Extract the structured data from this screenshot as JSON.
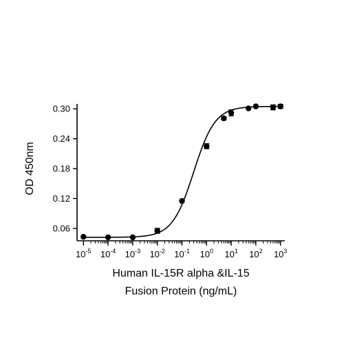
{
  "chart_data": {
    "type": "scatter",
    "xlabel_line1": "Human IL-15R alpha &IL-15",
    "xlabel_line2": "Fusion Protein (ng/mL)",
    "ylabel": "OD 450nm",
    "x_scale": "log10",
    "xlim": [
      5.5e-06,
      1500
    ],
    "ylim": [
      0.035,
      0.31
    ],
    "x_ticks": [
      {
        "value": 1e-05,
        "base": "10",
        "exp": "-5"
      },
      {
        "value": 0.0001,
        "base": "10",
        "exp": "-4"
      },
      {
        "value": 0.001,
        "base": "10",
        "exp": "-3"
      },
      {
        "value": 0.01,
        "base": "10",
        "exp": "-2"
      },
      {
        "value": 0.1,
        "base": "10",
        "exp": "-1"
      },
      {
        "value": 1,
        "base": "10",
        "exp": "0"
      },
      {
        "value": 10,
        "base": "10",
        "exp": "1"
      },
      {
        "value": 100,
        "base": "10",
        "exp": "2"
      },
      {
        "value": 1000,
        "base": "10",
        "exp": "3"
      }
    ],
    "y_ticks": [
      "0.06",
      "0.12",
      "0.18",
      "0.24",
      "0.30"
    ],
    "points": [
      {
        "x": 1e-05,
        "y": 0.043,
        "err": 0.001
      },
      {
        "x": 0.0001,
        "y": 0.042,
        "err": 0.001
      },
      {
        "x": 0.001,
        "y": 0.042,
        "err": 0.001
      },
      {
        "x": 0.01,
        "y": 0.055,
        "err": 0.005
      },
      {
        "x": 0.1,
        "y": 0.115,
        "err": 0.002
      },
      {
        "x": 1,
        "y": 0.225,
        "err": 0.005
      },
      {
        "x": 5,
        "y": 0.281,
        "err": 0.003
      },
      {
        "x": 10,
        "y": 0.292,
        "err": 0.006
      },
      {
        "x": 50,
        "y": 0.301,
        "err": 0.002
      },
      {
        "x": 100,
        "y": 0.305,
        "err": 0.002
      },
      {
        "x": 500,
        "y": 0.303,
        "err": 0.005
      },
      {
        "x": 1000,
        "y": 0.305,
        "err": 0.004
      }
    ],
    "fit": {
      "model": "4PL",
      "bottom": 0.042,
      "top": 0.305,
      "ec50": 0.3,
      "hill": 1.0
    },
    "grid": false,
    "legend": "none"
  }
}
